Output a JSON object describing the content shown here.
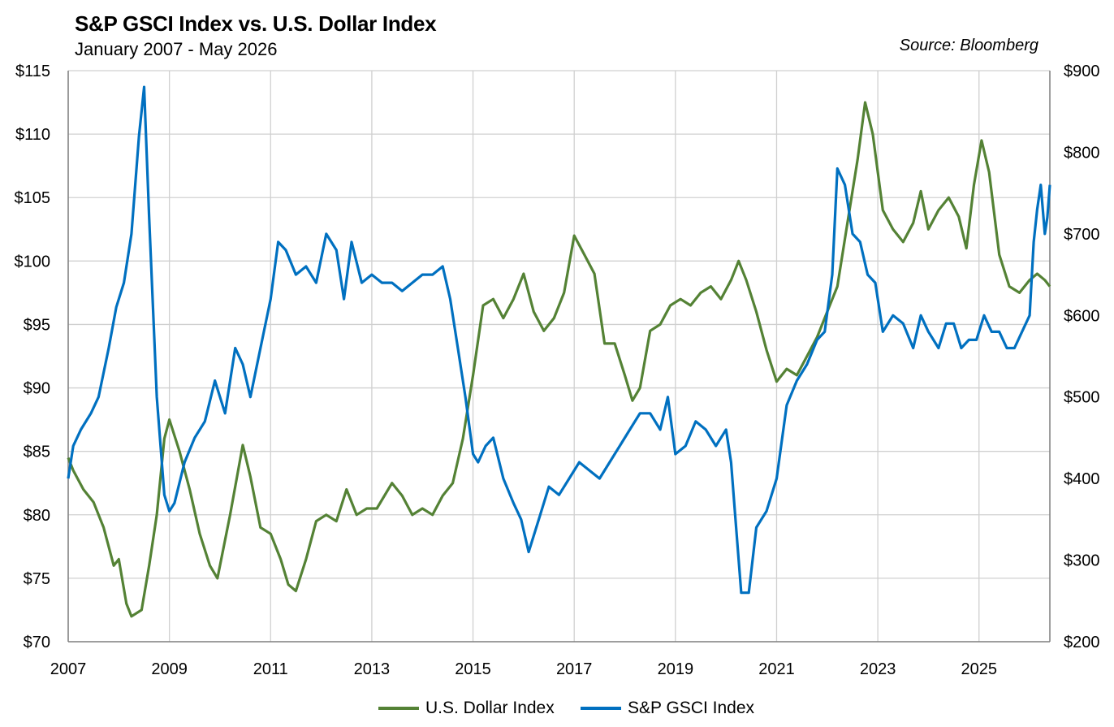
{
  "header": {
    "title": "S&P GSCI Index vs. U.S. Dollar Index",
    "subtitle": "January 2007 - May 2026",
    "source": "Source: Bloomberg"
  },
  "colors": {
    "usd": "#548235",
    "gsci": "#0070C0",
    "grid": "#d0d0d0",
    "axis": "#7f7f7f"
  },
  "chart_data": {
    "type": "line",
    "title": "S&P GSCI Index vs. U.S. Dollar Index",
    "subtitle": "January 2007 - May 2026",
    "xlabel": "",
    "ylabel_left": "",
    "ylabel_right": "",
    "xlim": [
      2007.0,
      2026.4
    ],
    "ylim_left": [
      70,
      115
    ],
    "ylim_right": [
      200,
      900
    ],
    "x_ticks": [
      "2007",
      "2009",
      "2011",
      "2013",
      "2015",
      "2017",
      "2019",
      "2021",
      "2023",
      "2025"
    ],
    "x_tick_values": [
      2007,
      2009,
      2011,
      2013,
      2015,
      2017,
      2019,
      2021,
      2023,
      2025
    ],
    "y_ticks_left": [
      "$70",
      "$75",
      "$80",
      "$85",
      "$90",
      "$95",
      "$100",
      "$105",
      "$110",
      "$115"
    ],
    "y_tick_values_left": [
      70,
      75,
      80,
      85,
      90,
      95,
      100,
      105,
      110,
      115
    ],
    "y_ticks_right": [
      "$200",
      "$300",
      "$400",
      "$500",
      "$600",
      "$700",
      "$800",
      "$900"
    ],
    "y_tick_values_right": [
      200,
      300,
      400,
      500,
      600,
      700,
      800,
      900
    ],
    "grid": true,
    "legend_position": "bottom",
    "series": [
      {
        "name": "U.S. Dollar Index",
        "axis": "left",
        "color": "#548235",
        "x": [
          2007.0,
          2007.1,
          2007.3,
          2007.5,
          2007.7,
          2007.9,
          2008.0,
          2008.15,
          2008.25,
          2008.45,
          2008.6,
          2008.75,
          2008.9,
          2009.0,
          2009.2,
          2009.4,
          2009.6,
          2009.8,
          2009.95,
          2010.2,
          2010.45,
          2010.6,
          2010.8,
          2011.0,
          2011.2,
          2011.35,
          2011.5,
          2011.7,
          2011.9,
          2012.1,
          2012.3,
          2012.5,
          2012.7,
          2012.9,
          2013.1,
          2013.4,
          2013.6,
          2013.8,
          2014.0,
          2014.2,
          2014.4,
          2014.6,
          2014.8,
          2015.0,
          2015.2,
          2015.4,
          2015.6,
          2015.8,
          2016.0,
          2016.2,
          2016.4,
          2016.6,
          2016.8,
          2017.0,
          2017.2,
          2017.4,
          2017.6,
          2017.8,
          2018.0,
          2018.15,
          2018.3,
          2018.5,
          2018.7,
          2018.9,
          2019.1,
          2019.3,
          2019.5,
          2019.7,
          2019.9,
          2020.1,
          2020.25,
          2020.4,
          2020.6,
          2020.8,
          2021.0,
          2021.2,
          2021.4,
          2021.6,
          2021.8,
          2022.0,
          2022.2,
          2022.4,
          2022.6,
          2022.75,
          2022.9,
          2023.1,
          2023.3,
          2023.5,
          2023.7,
          2023.85,
          2024.0,
          2024.2,
          2024.4,
          2024.6,
          2024.75,
          2024.9,
          2025.05,
          2025.2,
          2025.4,
          2025.6,
          2025.8,
          2026.0,
          2026.15,
          2026.3,
          2026.4
        ],
        "values": [
          84.5,
          83.5,
          82.0,
          81.0,
          79.0,
          76.0,
          76.5,
          73.0,
          72.0,
          72.5,
          76.0,
          80.0,
          86.0,
          87.5,
          85.0,
          82.0,
          78.5,
          76.0,
          75.0,
          80.0,
          85.5,
          83.0,
          79.0,
          78.5,
          76.5,
          74.5,
          74.0,
          76.5,
          79.5,
          80.0,
          79.5,
          82.0,
          80.0,
          80.5,
          80.5,
          82.5,
          81.5,
          80.0,
          80.5,
          80.0,
          81.5,
          82.5,
          86.0,
          91.0,
          96.5,
          97.0,
          95.5,
          97.0,
          99.0,
          96.0,
          94.5,
          95.5,
          97.5,
          102.0,
          100.5,
          99.0,
          93.5,
          93.5,
          91.0,
          89.0,
          90.0,
          94.5,
          95.0,
          96.5,
          97.0,
          96.5,
          97.5,
          98.0,
          97.0,
          98.5,
          100.0,
          98.5,
          96.0,
          93.0,
          90.5,
          91.5,
          91.0,
          92.5,
          94.0,
          96.0,
          98.0,
          103.0,
          108.0,
          112.5,
          110.0,
          104.0,
          102.5,
          101.5,
          103.0,
          105.5,
          102.5,
          104.0,
          105.0,
          103.5,
          101.0,
          106.0,
          109.5,
          107.0,
          100.5,
          98.0,
          97.5,
          98.5,
          99.0,
          98.5,
          98.0
        ]
      },
      {
        "name": "S&P GSCI Index",
        "axis": "right",
        "color": "#0070C0",
        "x": [
          2007.0,
          2007.1,
          2007.25,
          2007.45,
          2007.6,
          2007.8,
          2007.95,
          2008.1,
          2008.25,
          2008.4,
          2008.5,
          2008.6,
          2008.75,
          2008.9,
          2009.0,
          2009.1,
          2009.3,
          2009.5,
          2009.7,
          2009.9,
          2010.1,
          2010.3,
          2010.45,
          2010.6,
          2010.8,
          2011.0,
          2011.15,
          2011.3,
          2011.5,
          2011.7,
          2011.9,
          2012.1,
          2012.3,
          2012.45,
          2012.6,
          2012.8,
          2013.0,
          2013.2,
          2013.4,
          2013.6,
          2013.8,
          2014.0,
          2014.2,
          2014.4,
          2014.55,
          2014.7,
          2014.85,
          2015.0,
          2015.1,
          2015.25,
          2015.4,
          2015.6,
          2015.8,
          2015.95,
          2016.1,
          2016.3,
          2016.5,
          2016.7,
          2016.9,
          2017.1,
          2017.3,
          2017.5,
          2017.7,
          2017.9,
          2018.1,
          2018.3,
          2018.5,
          2018.7,
          2018.85,
          2019.0,
          2019.2,
          2019.4,
          2019.6,
          2019.8,
          2020.0,
          2020.1,
          2020.2,
          2020.3,
          2020.45,
          2020.6,
          2020.8,
          2021.0,
          2021.2,
          2021.4,
          2021.6,
          2021.8,
          2021.95,
          2022.1,
          2022.2,
          2022.35,
          2022.5,
          2022.65,
          2022.8,
          2022.95,
          2023.1,
          2023.3,
          2023.5,
          2023.7,
          2023.85,
          2024.0,
          2024.2,
          2024.35,
          2024.5,
          2024.65,
          2024.8,
          2024.95,
          2025.1,
          2025.25,
          2025.4,
          2025.55,
          2025.7,
          2025.85,
          2026.0,
          2026.08,
          2026.15,
          2026.22,
          2026.3,
          2026.35,
          2026.4
        ],
        "values": [
          400,
          440,
          460,
          480,
          500,
          560,
          610,
          640,
          700,
          820,
          880,
          720,
          500,
          380,
          360,
          370,
          420,
          450,
          470,
          520,
          480,
          560,
          540,
          500,
          560,
          620,
          690,
          680,
          650,
          660,
          640,
          700,
          680,
          620,
          690,
          640,
          650,
          640,
          640,
          630,
          640,
          650,
          650,
          660,
          620,
          560,
          500,
          430,
          420,
          440,
          450,
          400,
          370,
          350,
          310,
          350,
          390,
          380,
          400,
          420,
          410,
          400,
          420,
          440,
          460,
          480,
          480,
          460,
          500,
          430,
          440,
          470,
          460,
          440,
          460,
          420,
          340,
          260,
          260,
          340,
          360,
          400,
          490,
          520,
          540,
          570,
          580,
          650,
          780,
          760,
          700,
          690,
          650,
          640,
          580,
          600,
          590,
          560,
          600,
          580,
          560,
          590,
          590,
          560,
          570,
          570,
          600,
          580,
          580,
          560,
          560,
          580,
          600,
          690,
          730,
          760,
          700,
          720,
          760
        ]
      }
    ]
  }
}
